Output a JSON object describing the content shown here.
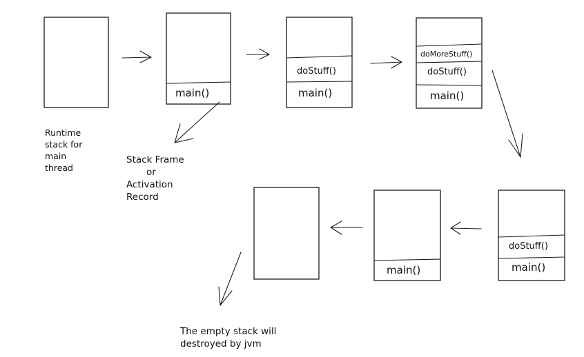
{
  "runtime_note": [
    "Runtime",
    "stack for",
    "main",
    "thread"
  ],
  "frame_note": [
    "Stack Frame",
    "or",
    "Activation",
    "Record"
  ],
  "empty_note": [
    "The empty stack will",
    "destroyed by jvm"
  ],
  "frames": {
    "main": "main()",
    "do_stuff": "doStuff()",
    "do_more_stuff": "doMoreStuff()"
  }
}
